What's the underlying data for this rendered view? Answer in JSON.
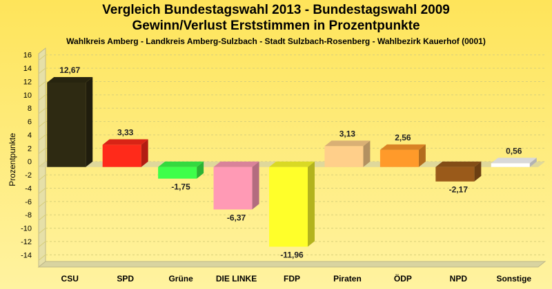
{
  "chart_data": {
    "type": "bar",
    "title": "Vergleich Bundestagswahl 2013 - Bundestagswahl 2009",
    "subtitle": "Gewinn/Verlust Erststimmen in Prozentpunkte",
    "subsubtitle": "Wahlkreis Amberg - Landkreis Amberg-Sulzbach - Stadt Sulzbach-Rosenberg - Wahlbezirk Kauerhof (0001)",
    "xlabel": "",
    "ylabel": "Prozentpunkte",
    "ylim": [
      -15,
      17
    ],
    "yticks": [
      16,
      14,
      12,
      10,
      8,
      6,
      4,
      2,
      0,
      -2,
      -4,
      -6,
      -8,
      -10,
      -12,
      -14
    ],
    "grid": true,
    "categories": [
      "CSU",
      "SPD",
      "Grüne",
      "DIE LINKE",
      "FDP",
      "Piraten",
      "ÖDP",
      "NPD",
      "Sonstige"
    ],
    "values": [
      12.67,
      3.33,
      -1.75,
      -6.37,
      -11.96,
      3.13,
      2.56,
      -2.17,
      0.56
    ],
    "value_labels": [
      "12,67",
      "3,33",
      "-1,75",
      "-6,37",
      "-11,96",
      "3,13",
      "2,56",
      "-2,17",
      "0,56"
    ],
    "colors": [
      "#2e2a12",
      "#ff2a1a",
      "#3dff4a",
      "#ff9ab5",
      "#ffff2a",
      "#ffcf8a",
      "#ff9a2a",
      "#9a5a1a",
      "#ffffff"
    ]
  }
}
